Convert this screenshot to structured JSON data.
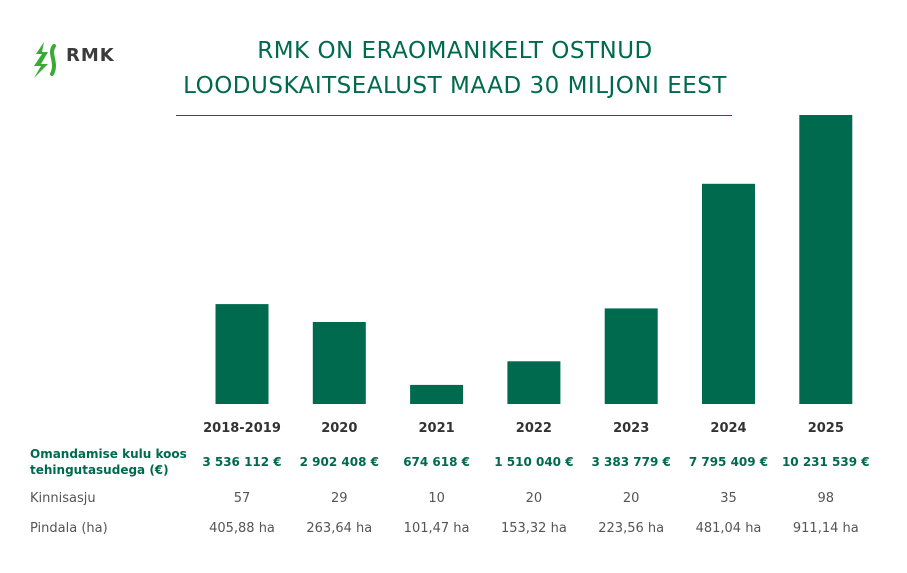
{
  "brand": {
    "name": "RMK",
    "color": "#006a4e",
    "accent": "#3aa935",
    "icon": "rmk-tree-logo-icon"
  },
  "header": {
    "title_line1": "RMK ON ERAOMANIKELT OSTNUD",
    "title_line2": "LOODUSKAITSEALUST MAAD 30 MILJONI EEST"
  },
  "table": {
    "cost_label_line1": "Omandamise kulu koos",
    "cost_label_line2": "tehingutasudega (€)",
    "count_label": "Kinnisasju",
    "area_label": "Pindala (ha)",
    "costs": [
      "3 536 112 €",
      "2 902 408 €",
      "674 618 €",
      "1 510 040 €",
      "3 383 779 €",
      "7 795 409 €",
      "10 231 539 €"
    ],
    "counts": [
      "57",
      "29",
      "10",
      "20",
      "20",
      "35",
      "98"
    ],
    "areas": [
      "405,88 ha",
      "263,64 ha",
      "101,47 ha",
      "153,32 ha",
      "223,56 ha",
      "481,04 ha",
      "911,14 ha"
    ]
  },
  "chart_data": {
    "type": "bar",
    "categories": [
      "2018-2019",
      "2020",
      "2021",
      "2022",
      "2023",
      "2024",
      "2025"
    ],
    "values": [
      3536112,
      2902408,
      674618,
      1510040,
      3383779,
      7795409,
      10231539
    ],
    "ylim": [
      0,
      10231539
    ],
    "grid": false,
    "bar_color": "#006a4e"
  }
}
